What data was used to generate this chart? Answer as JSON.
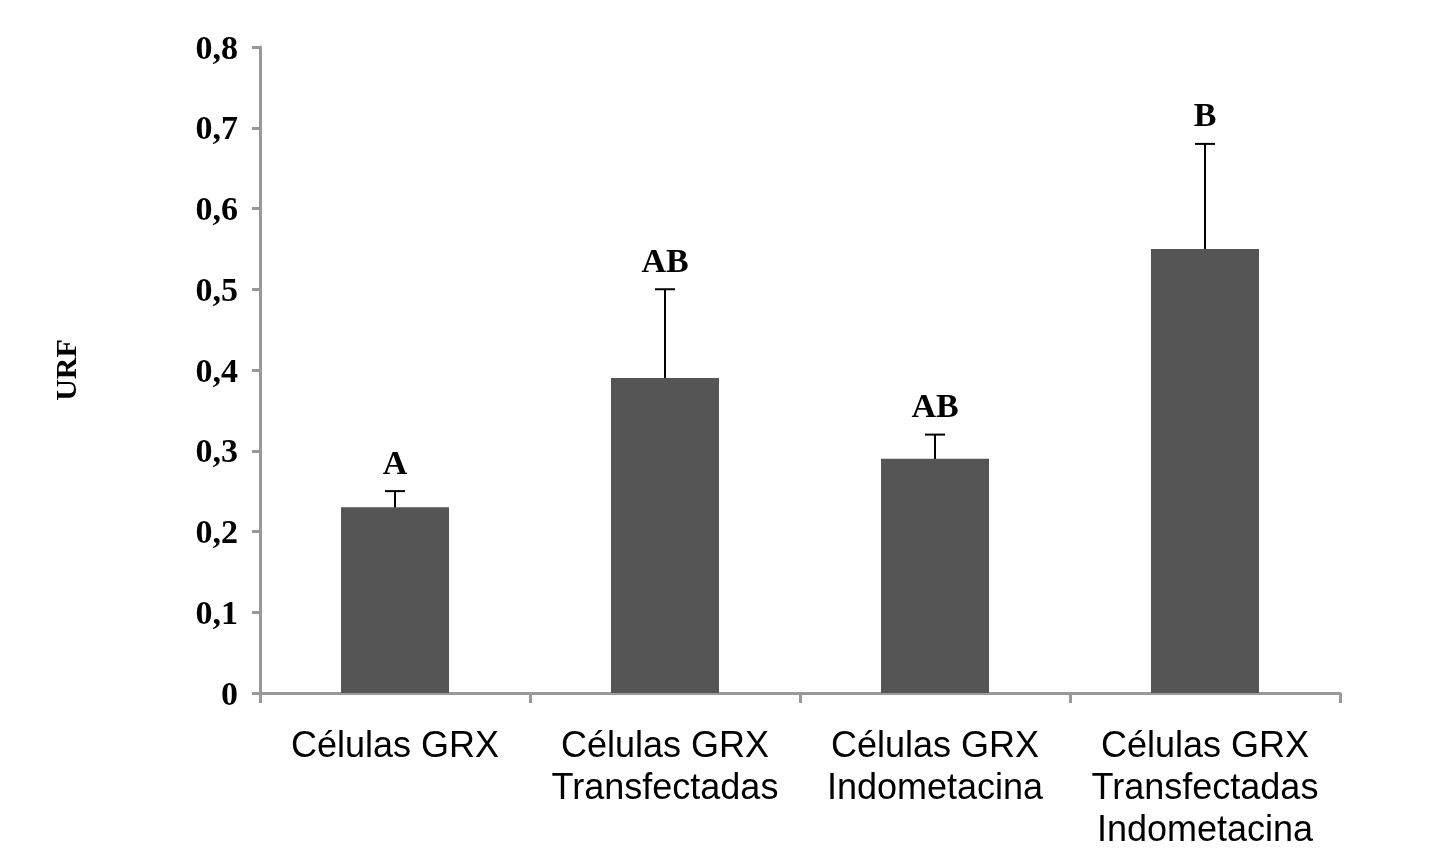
{
  "chart_data": {
    "type": "bar",
    "ylabel": "URF",
    "categories": [
      "Células GRX",
      "Células GRX\nTransfectadas",
      "Células GRX\nIndometacina",
      "Células GRX\nTransfectadas\nIndometacina"
    ],
    "values": [
      0.23,
      0.39,
      0.29,
      0.55
    ],
    "errors": [
      0.02,
      0.11,
      0.03,
      0.13
    ],
    "color": "#555555",
    "ylim": [
      0,
      0.8
    ],
    "yticks": [
      0,
      {
        "value": 0.1,
        "label": "0,1"
      },
      {
        "value": 0.2,
        "label": "0,2"
      },
      {
        "value": 0.3,
        "label": "0,3"
      },
      {
        "value": 0.4,
        "label": "0,4"
      },
      {
        "value": 0.5,
        "label": "0,5"
      },
      {
        "value": 0.6,
        "label": "0,6"
      },
      {
        "value": 0.7,
        "label": "0,7"
      },
      {
        "value": 0.8,
        "label": "0,8"
      }
    ],
    "annotations": [
      {
        "text": "A",
        "x": "Células GRX",
        "y": 0.25
      },
      {
        "text": "AB",
        "x": "Células GRX\nTransfectadas",
        "y": 0.5
      },
      {
        "text": "AB",
        "x": "Células GRX\nIndometacina",
        "y": 0.32
      },
      {
        "text": "B",
        "x": "Células GRX\nTransfectadas\nIndometacina",
        "y": 0.68
      }
    ],
    "grid": false
  }
}
